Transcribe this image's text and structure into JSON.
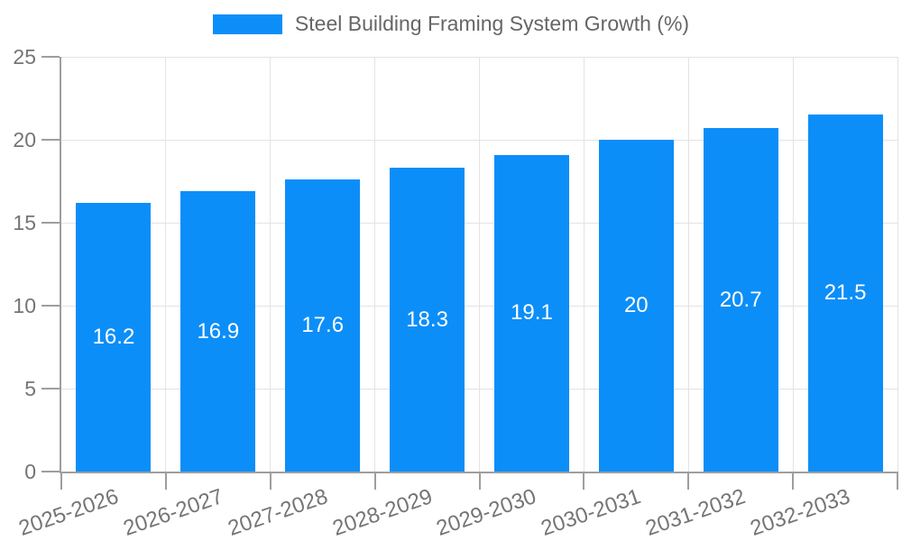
{
  "chart_data": {
    "type": "bar",
    "title": "",
    "xlabel": "",
    "ylabel": "",
    "categories": [
      "2025-2026",
      "2026-2027",
      "2027-2028",
      "2028-2029",
      "2029-2030",
      "2030-2031",
      "2031-2032",
      "2032-2033"
    ],
    "series": [
      {
        "name": "Steel Building Framing System Growth (%)",
        "values": [
          16.2,
          16.9,
          17.6,
          18.3,
          19.1,
          20,
          20.7,
          21.5
        ],
        "color": "#0c8ef8"
      }
    ],
    "value_labels": [
      "16.2",
      "16.9",
      "17.6",
      "18.3",
      "19.1",
      "20",
      "20.7",
      "21.5"
    ],
    "ylim": [
      0,
      25
    ],
    "yticks": [
      0,
      5,
      10,
      15,
      20,
      25
    ],
    "grid": true,
    "legend_position": "top"
  },
  "colors": {
    "bar": "#0c8ef8",
    "value_label": "#ffffff",
    "axis": "#9e9e9e",
    "gridline": "#e3e3e3",
    "tick_label": "#757575",
    "legend_text": "#666666",
    "background": "#ffffff"
  }
}
